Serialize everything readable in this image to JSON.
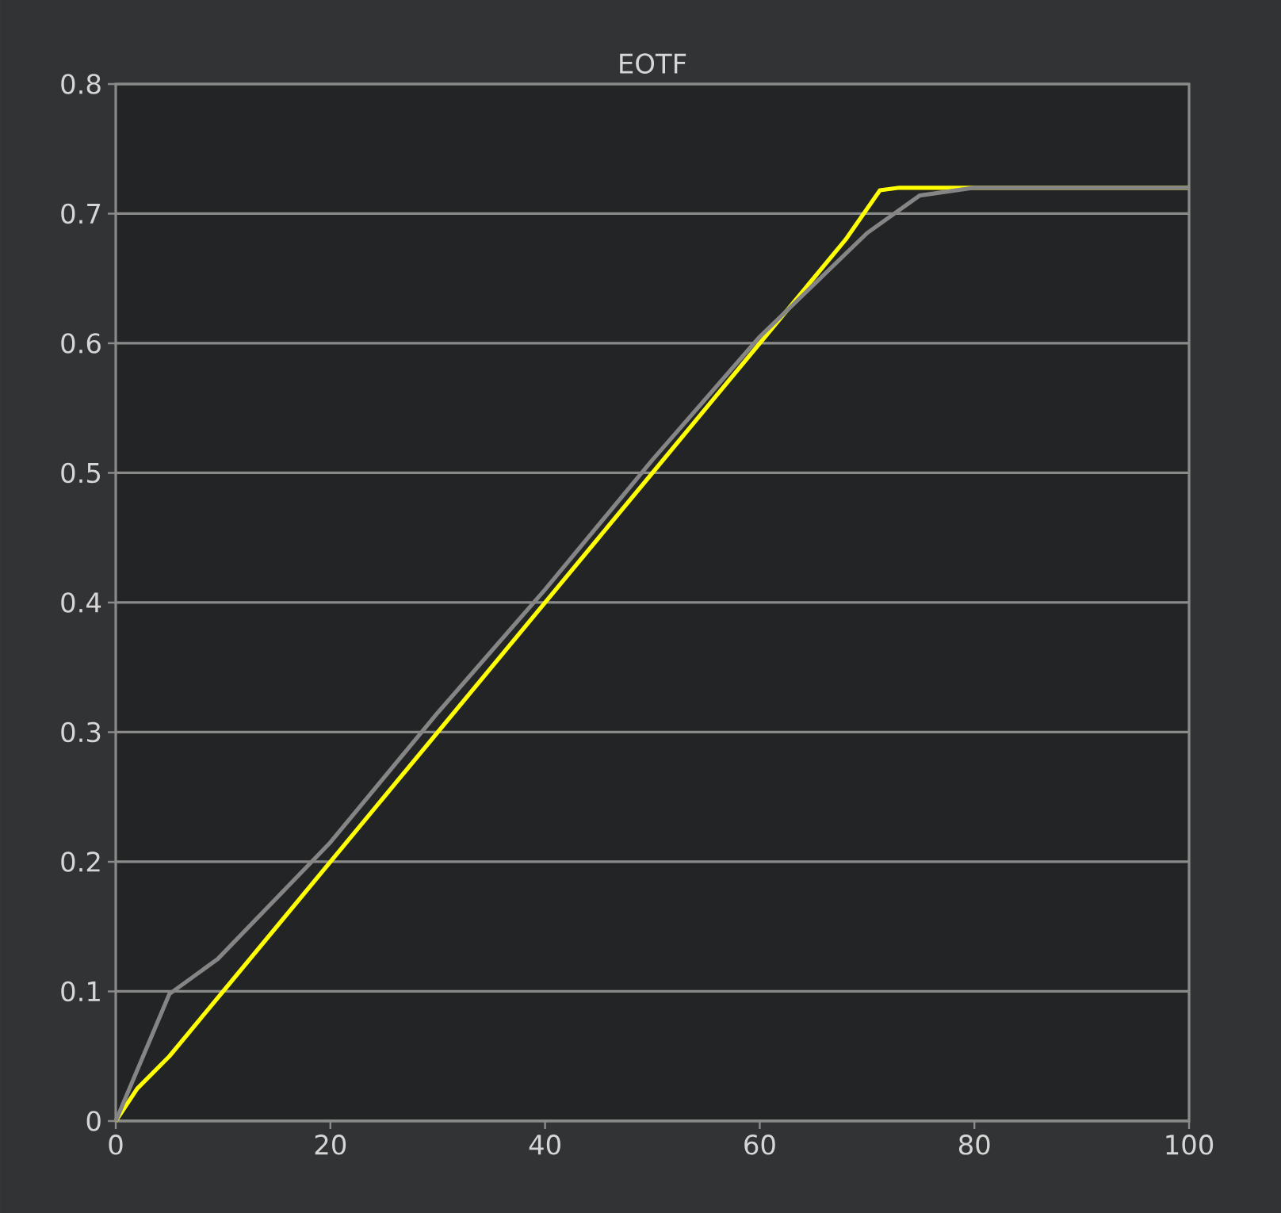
{
  "chart_data": {
    "type": "line",
    "title": "EOTF",
    "series": [
      {
        "color": "#ffff00",
        "x": [
          0,
          2,
          5,
          8,
          10,
          15,
          20,
          25,
          30,
          35,
          40,
          45,
          50,
          55,
          60,
          65,
          68,
          71.2,
          73,
          80,
          90,
          100
        ],
        "values": [
          0,
          0.025,
          0.05,
          0.08,
          0.1,
          0.15,
          0.2,
          0.25,
          0.3,
          0.35,
          0.4,
          0.45,
          0.5,
          0.55,
          0.6,
          0.65,
          0.68,
          0.718,
          0.72,
          0.72,
          0.72,
          0.72
        ]
      },
      {
        "color": "#858585",
        "x": [
          0,
          5,
          9.5,
          20,
          30,
          40,
          50,
          60,
          65,
          70,
          74.9,
          80,
          90,
          100
        ],
        "values": [
          0,
          0.098,
          0.125,
          0.215,
          0.315,
          0.41,
          0.51,
          0.605,
          0.645,
          0.685,
          0.714,
          0.72,
          0.72,
          0.72
        ]
      }
    ],
    "xlim": [
      0,
      100
    ],
    "ylim": [
      0,
      0.8
    ],
    "xticks": [
      0,
      20,
      40,
      60,
      80,
      100
    ],
    "yticks": [
      0,
      0.1,
      0.2,
      0.3,
      0.4,
      0.5,
      0.6,
      0.7,
      0.8
    ],
    "grid": "y",
    "marker": "none",
    "line_style": "solid"
  }
}
